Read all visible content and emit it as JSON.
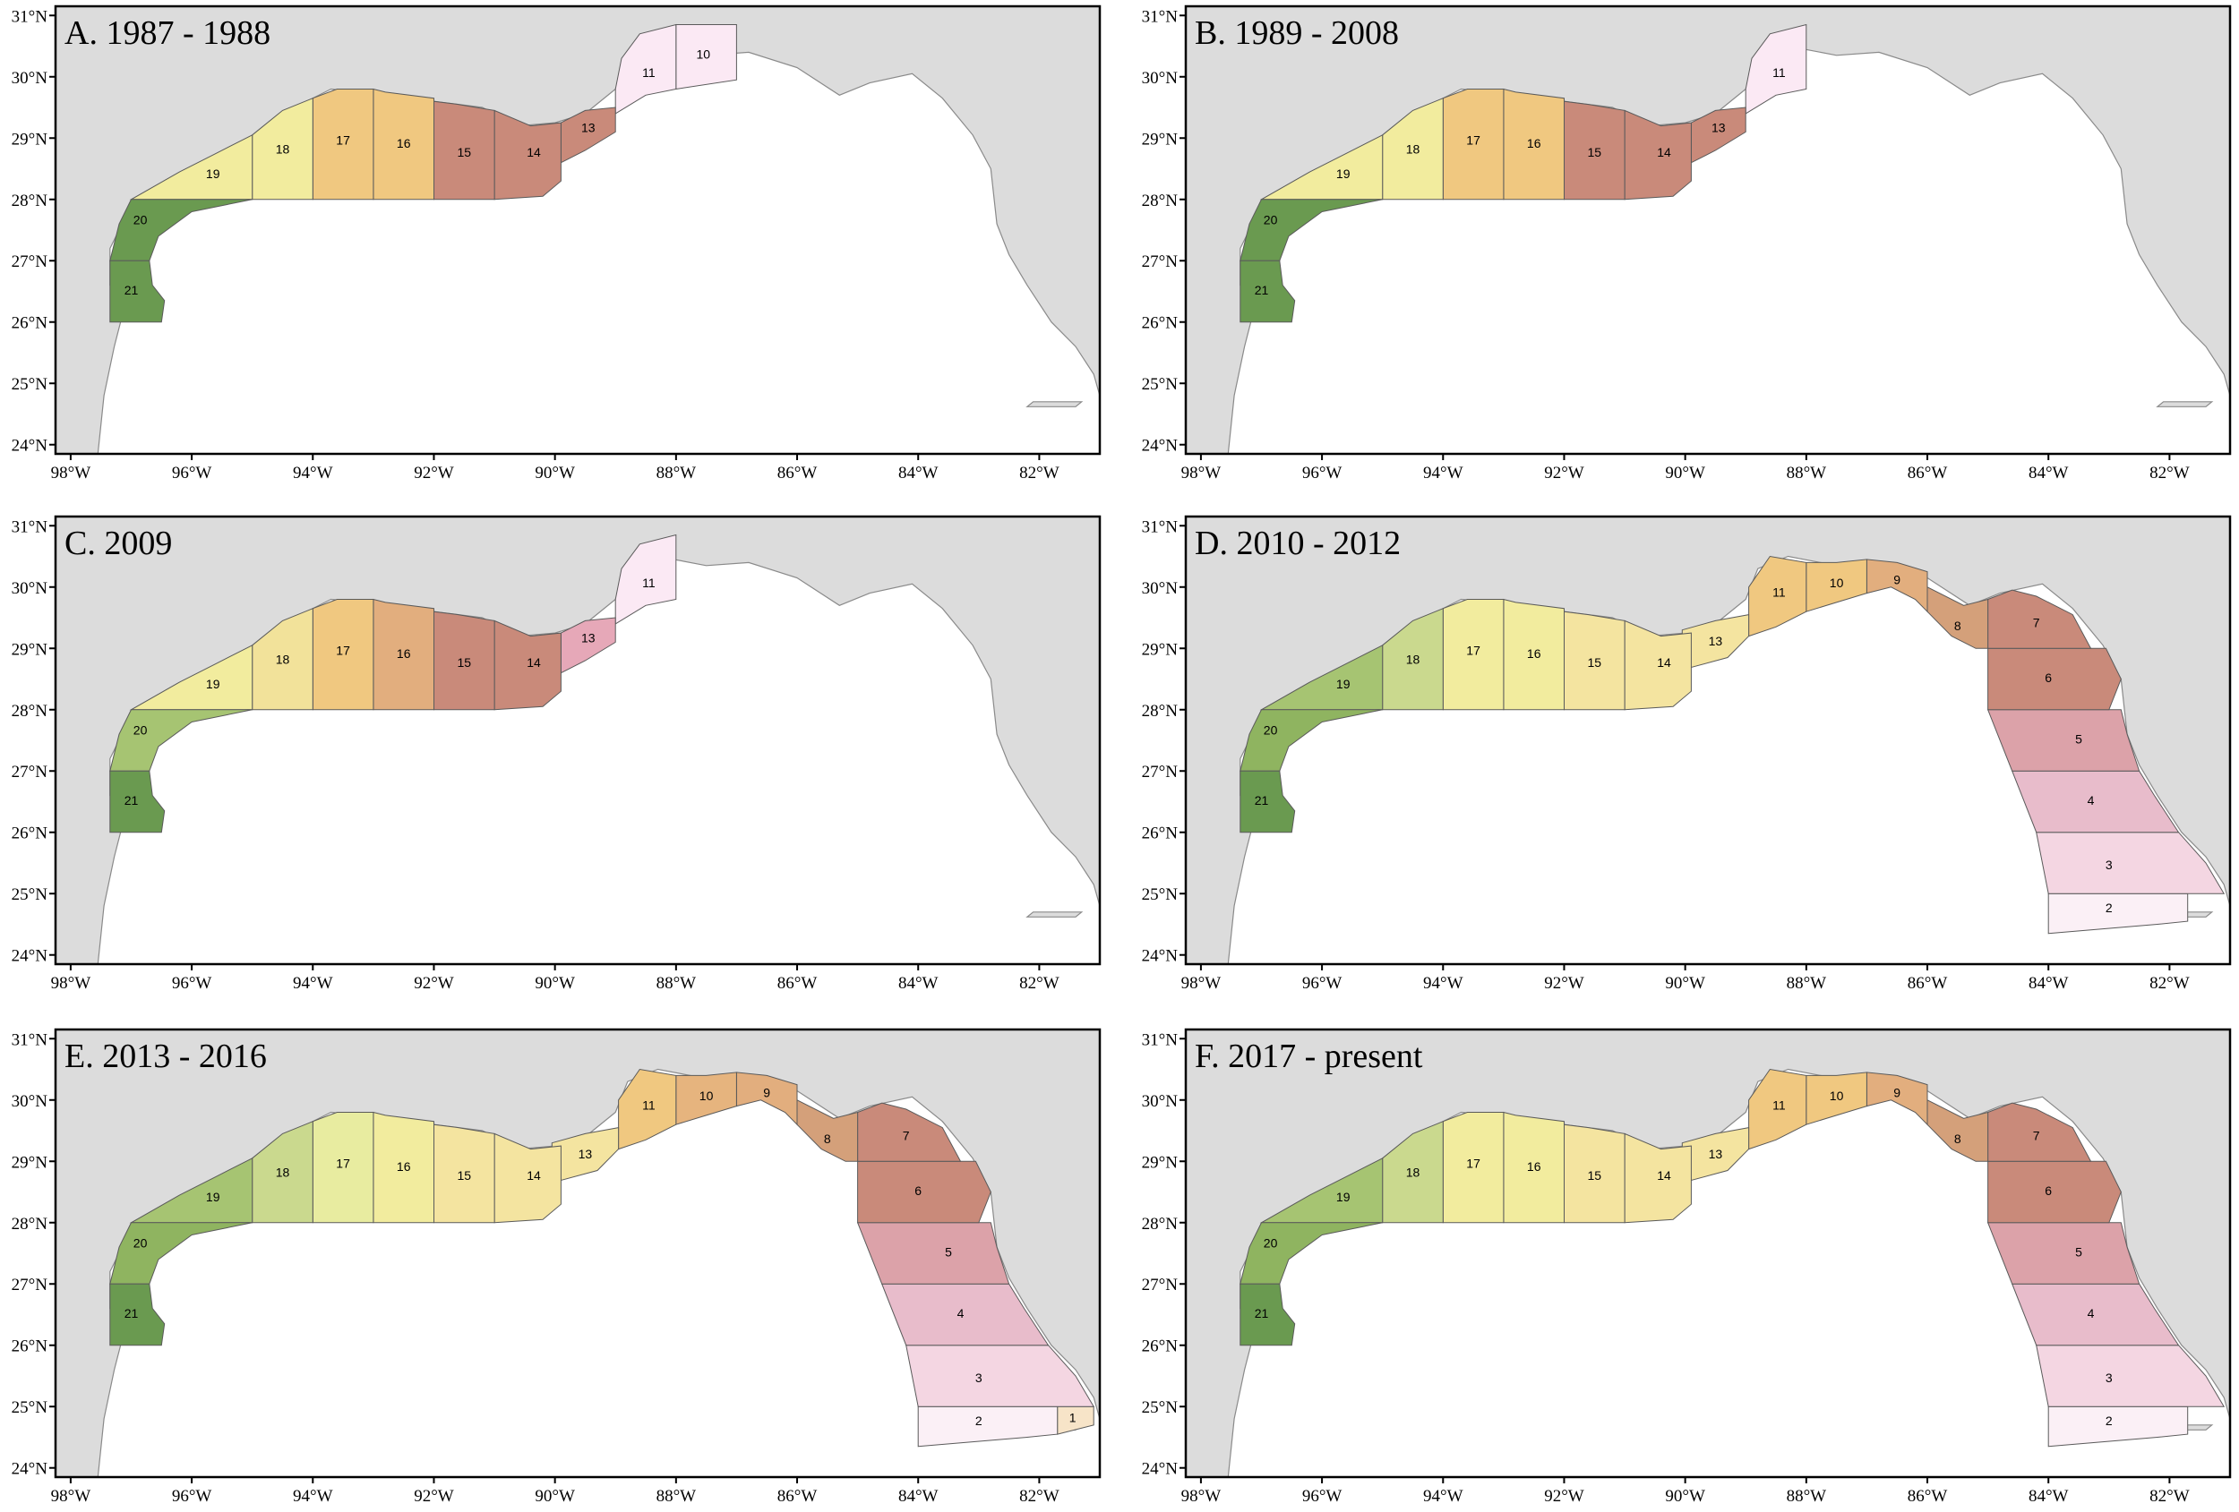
{
  "figure": {
    "lon_ticks": [
      "98°W",
      "96°W",
      "94°W",
      "92°W",
      "90°W",
      "88°W",
      "86°W",
      "84°W",
      "82°W"
    ],
    "lat_ticks": [
      "24°N",
      "25°N",
      "26°N",
      "27°N",
      "28°N",
      "29°N",
      "30°N",
      "31°N"
    ],
    "panels": [
      {
        "title": "A. 1987 - 1988",
        "zones": [
          {
            "id": "10",
            "color": "#fbe9f4"
          },
          {
            "id": "11",
            "color": "#fbe9f4"
          },
          {
            "id": "13",
            "color": "#c98a7a"
          },
          {
            "id": "14",
            "color": "#c98a7a"
          },
          {
            "id": "15",
            "color": "#c98a7a"
          },
          {
            "id": "16",
            "color": "#f0c880"
          },
          {
            "id": "17",
            "color": "#f0c880"
          },
          {
            "id": "18",
            "color": "#f2ec9e"
          },
          {
            "id": "19",
            "color": "#f2ec9e"
          },
          {
            "id": "20",
            "color": "#6a9a50"
          },
          {
            "id": "21",
            "color": "#6a9a50"
          }
        ]
      },
      {
        "title": "B. 1989 - 2008",
        "zones": [
          {
            "id": "11",
            "color": "#fbe9f4"
          },
          {
            "id": "13",
            "color": "#c98a7a"
          },
          {
            "id": "14",
            "color": "#c98a7a"
          },
          {
            "id": "15",
            "color": "#c98a7a"
          },
          {
            "id": "16",
            "color": "#f0c880"
          },
          {
            "id": "17",
            "color": "#f0c880"
          },
          {
            "id": "18",
            "color": "#f2ec9e"
          },
          {
            "id": "19",
            "color": "#f2ec9e"
          },
          {
            "id": "20",
            "color": "#6a9a50"
          },
          {
            "id": "21",
            "color": "#6a9a50"
          }
        ]
      },
      {
        "title": "C. 2009",
        "zones": [
          {
            "id": "11",
            "color": "#fbe9f4"
          },
          {
            "id": "13",
            "color": "#e6a8b8"
          },
          {
            "id": "14",
            "color": "#c98a7a"
          },
          {
            "id": "15",
            "color": "#c98a7a"
          },
          {
            "id": "16",
            "color": "#e2ae7e"
          },
          {
            "id": "17",
            "color": "#f0c880"
          },
          {
            "id": "18",
            "color": "#f2e29a"
          },
          {
            "id": "19",
            "color": "#f2ec9e"
          },
          {
            "id": "20",
            "color": "#a6c472"
          },
          {
            "id": "21",
            "color": "#6a9a50"
          }
        ]
      },
      {
        "title": "D. 2010 - 2012",
        "zones": [
          {
            "id": "2",
            "color": "#fbf0f6"
          },
          {
            "id": "3",
            "color": "#f4d6e2"
          },
          {
            "id": "4",
            "color": "#e8bccb"
          },
          {
            "id": "5",
            "color": "#dca2a9"
          },
          {
            "id": "6",
            "color": "#c98a7a"
          },
          {
            "id": "7",
            "color": "#c98a7a"
          },
          {
            "id": "8",
            "color": "#d4a07a"
          },
          {
            "id": "9",
            "color": "#e2ae7e"
          },
          {
            "id": "10",
            "color": "#f0c880"
          },
          {
            "id": "11",
            "color": "#f0c880"
          },
          {
            "id": "13",
            "color": "#f4e4a0"
          },
          {
            "id": "14",
            "color": "#f4e4a0"
          },
          {
            "id": "15",
            "color": "#f4e4a0"
          },
          {
            "id": "16",
            "color": "#f2ec9e"
          },
          {
            "id": "17",
            "color": "#f2ec9e"
          },
          {
            "id": "18",
            "color": "#cad98e"
          },
          {
            "id": "19",
            "color": "#a6c472"
          },
          {
            "id": "20",
            "color": "#8fb460"
          },
          {
            "id": "21",
            "color": "#6a9a50"
          }
        ]
      },
      {
        "title": "E. 2013 - 2016",
        "zones": [
          {
            "id": "1",
            "color": "#f7e4c8"
          },
          {
            "id": "2",
            "color": "#fbf0f6"
          },
          {
            "id": "3",
            "color": "#f4d6e2"
          },
          {
            "id": "4",
            "color": "#e8bccb"
          },
          {
            "id": "5",
            "color": "#dca2a9"
          },
          {
            "id": "6",
            "color": "#c98a7a"
          },
          {
            "id": "7",
            "color": "#c98a7a"
          },
          {
            "id": "8",
            "color": "#d4a07a"
          },
          {
            "id": "9",
            "color": "#e2ae7e"
          },
          {
            "id": "10",
            "color": "#e6b47e"
          },
          {
            "id": "11",
            "color": "#f0c880"
          },
          {
            "id": "13",
            "color": "#f4e4a0"
          },
          {
            "id": "14",
            "color": "#f4e4a0"
          },
          {
            "id": "15",
            "color": "#f4e4a0"
          },
          {
            "id": "16",
            "color": "#f2ec9e"
          },
          {
            "id": "17",
            "color": "#e8eca0"
          },
          {
            "id": "18",
            "color": "#cad98e"
          },
          {
            "id": "19",
            "color": "#a6c472"
          },
          {
            "id": "20",
            "color": "#8fb460"
          },
          {
            "id": "21",
            "color": "#6a9a50"
          }
        ]
      },
      {
        "title": "F. 2017 - present",
        "zones": [
          {
            "id": "2",
            "color": "#fbf0f6"
          },
          {
            "id": "3",
            "color": "#f4d6e2"
          },
          {
            "id": "4",
            "color": "#e8bccb"
          },
          {
            "id": "5",
            "color": "#dca2a9"
          },
          {
            "id": "6",
            "color": "#c98a7a"
          },
          {
            "id": "7",
            "color": "#c98a7a"
          },
          {
            "id": "8",
            "color": "#d4a07a"
          },
          {
            "id": "9",
            "color": "#e2ae7e"
          },
          {
            "id": "10",
            "color": "#f0c880"
          },
          {
            "id": "11",
            "color": "#f0c880"
          },
          {
            "id": "13",
            "color": "#f4e4a0"
          },
          {
            "id": "14",
            "color": "#f4e4a0"
          },
          {
            "id": "15",
            "color": "#f4e4a0"
          },
          {
            "id": "16",
            "color": "#f2ec9e"
          },
          {
            "id": "17",
            "color": "#f2ec9e"
          },
          {
            "id": "18",
            "color": "#cad98e"
          },
          {
            "id": "19",
            "color": "#a6c472"
          },
          {
            "id": "20",
            "color": "#8fb460"
          },
          {
            "id": "21",
            "color": "#6a9a50"
          }
        ]
      }
    ]
  }
}
